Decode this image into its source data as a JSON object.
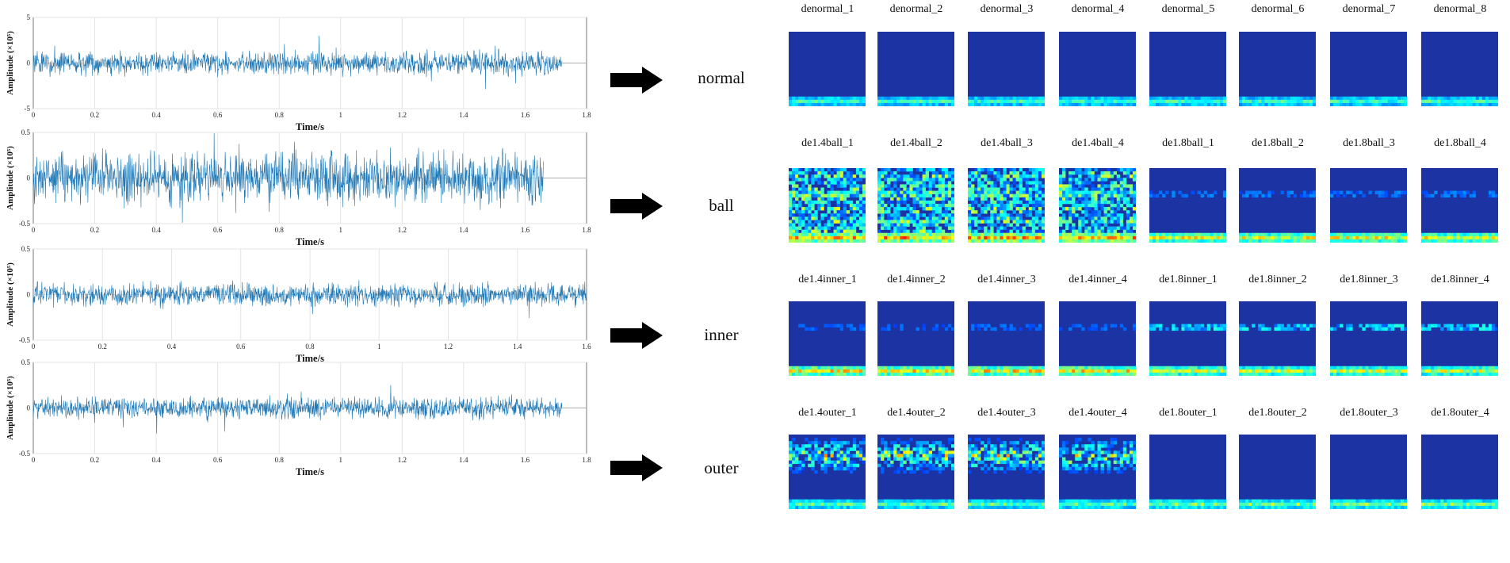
{
  "colors": {
    "signal": "#1f77b4",
    "arrow": "#000000",
    "tile_bg": "#1b33a3"
  },
  "signals": [
    {
      "name": "normal",
      "ylabel": "Amplitude (×10⁵)",
      "xlabel": "Time/s",
      "yticks": [
        "5",
        "0",
        "-5"
      ],
      "xticks": [
        "0",
        "0.2",
        "0.4",
        "0.6",
        "0.8",
        "1",
        "1.2",
        "1.4",
        "1.6",
        "1.8"
      ],
      "signal_end_s": 1.72,
      "xmax": 1.8,
      "amplitude_fraction": 0.35
    },
    {
      "name": "ball",
      "ylabel": "Amplitude (×10⁵)",
      "xlabel": "Time/s",
      "yticks": [
        "0.5",
        "0",
        "-0.5"
      ],
      "xticks": [
        "0",
        "0.2",
        "0.4",
        "0.6",
        "0.8",
        "1",
        "1.2",
        "1.4",
        "1.6",
        "1.8"
      ],
      "signal_end_s": 1.66,
      "xmax": 1.8,
      "amplitude_fraction": 0.78
    },
    {
      "name": "inner",
      "ylabel": "Amplitude (×10⁵)",
      "xlabel": "Time/s",
      "yticks": [
        "0.5",
        "0",
        "-0.5"
      ],
      "xticks": [
        "0",
        "0.2",
        "0.4",
        "0.6",
        "0.8",
        "1",
        "1.2",
        "1.4",
        "1.6"
      ],
      "signal_end_s": 1.6,
      "xmax": 1.6,
      "amplitude_fraction": 0.35
    },
    {
      "name": "outer",
      "ylabel": "Amplitude (×10⁵)",
      "xlabel": "Time/s",
      "yticks": [
        "0.5",
        "0",
        "-0.5"
      ],
      "xticks": [
        "0",
        "0.2",
        "0.4",
        "0.6",
        "0.8",
        "1",
        "1.2",
        "1.4",
        "1.6",
        "1.8"
      ],
      "signal_end_s": 1.72,
      "xmax": 1.8,
      "amplitude_fraction": 0.35
    }
  ],
  "classes": [
    "normal",
    "ball",
    "inner",
    "outer"
  ],
  "rows": [
    {
      "class": "normal",
      "labels": [
        "denormal_1",
        "denormal_2",
        "denormal_3",
        "denormal_4",
        "denormal_5",
        "denormal_6",
        "denormal_7",
        "denormal_8"
      ]
    },
    {
      "class": "ball",
      "labels": [
        "de1.4ball_1",
        "de1.4ball_2",
        "de1.4ball_3",
        "de1.4ball_4",
        "de1.8ball_1",
        "de1.8ball_2",
        "de1.8ball_3",
        "de1.8ball_4"
      ]
    },
    {
      "class": "inner",
      "labels": [
        "de1.4inner_1",
        "de1.4inner_2",
        "de1.4inner_3",
        "de1.4inner_4",
        "de1.8inner_1",
        "de1.8inner_2",
        "de1.8inner_3",
        "de1.8inner_4"
      ]
    },
    {
      "class": "outer",
      "labels": [
        "de1.4outer_1",
        "de1.4outer_2",
        "de1.4outer_3",
        "de1.4outer_4",
        "de1.8outer_1",
        "de1.8outer_2",
        "de1.8outer_3",
        "de1.8outer_4"
      ]
    }
  ]
}
